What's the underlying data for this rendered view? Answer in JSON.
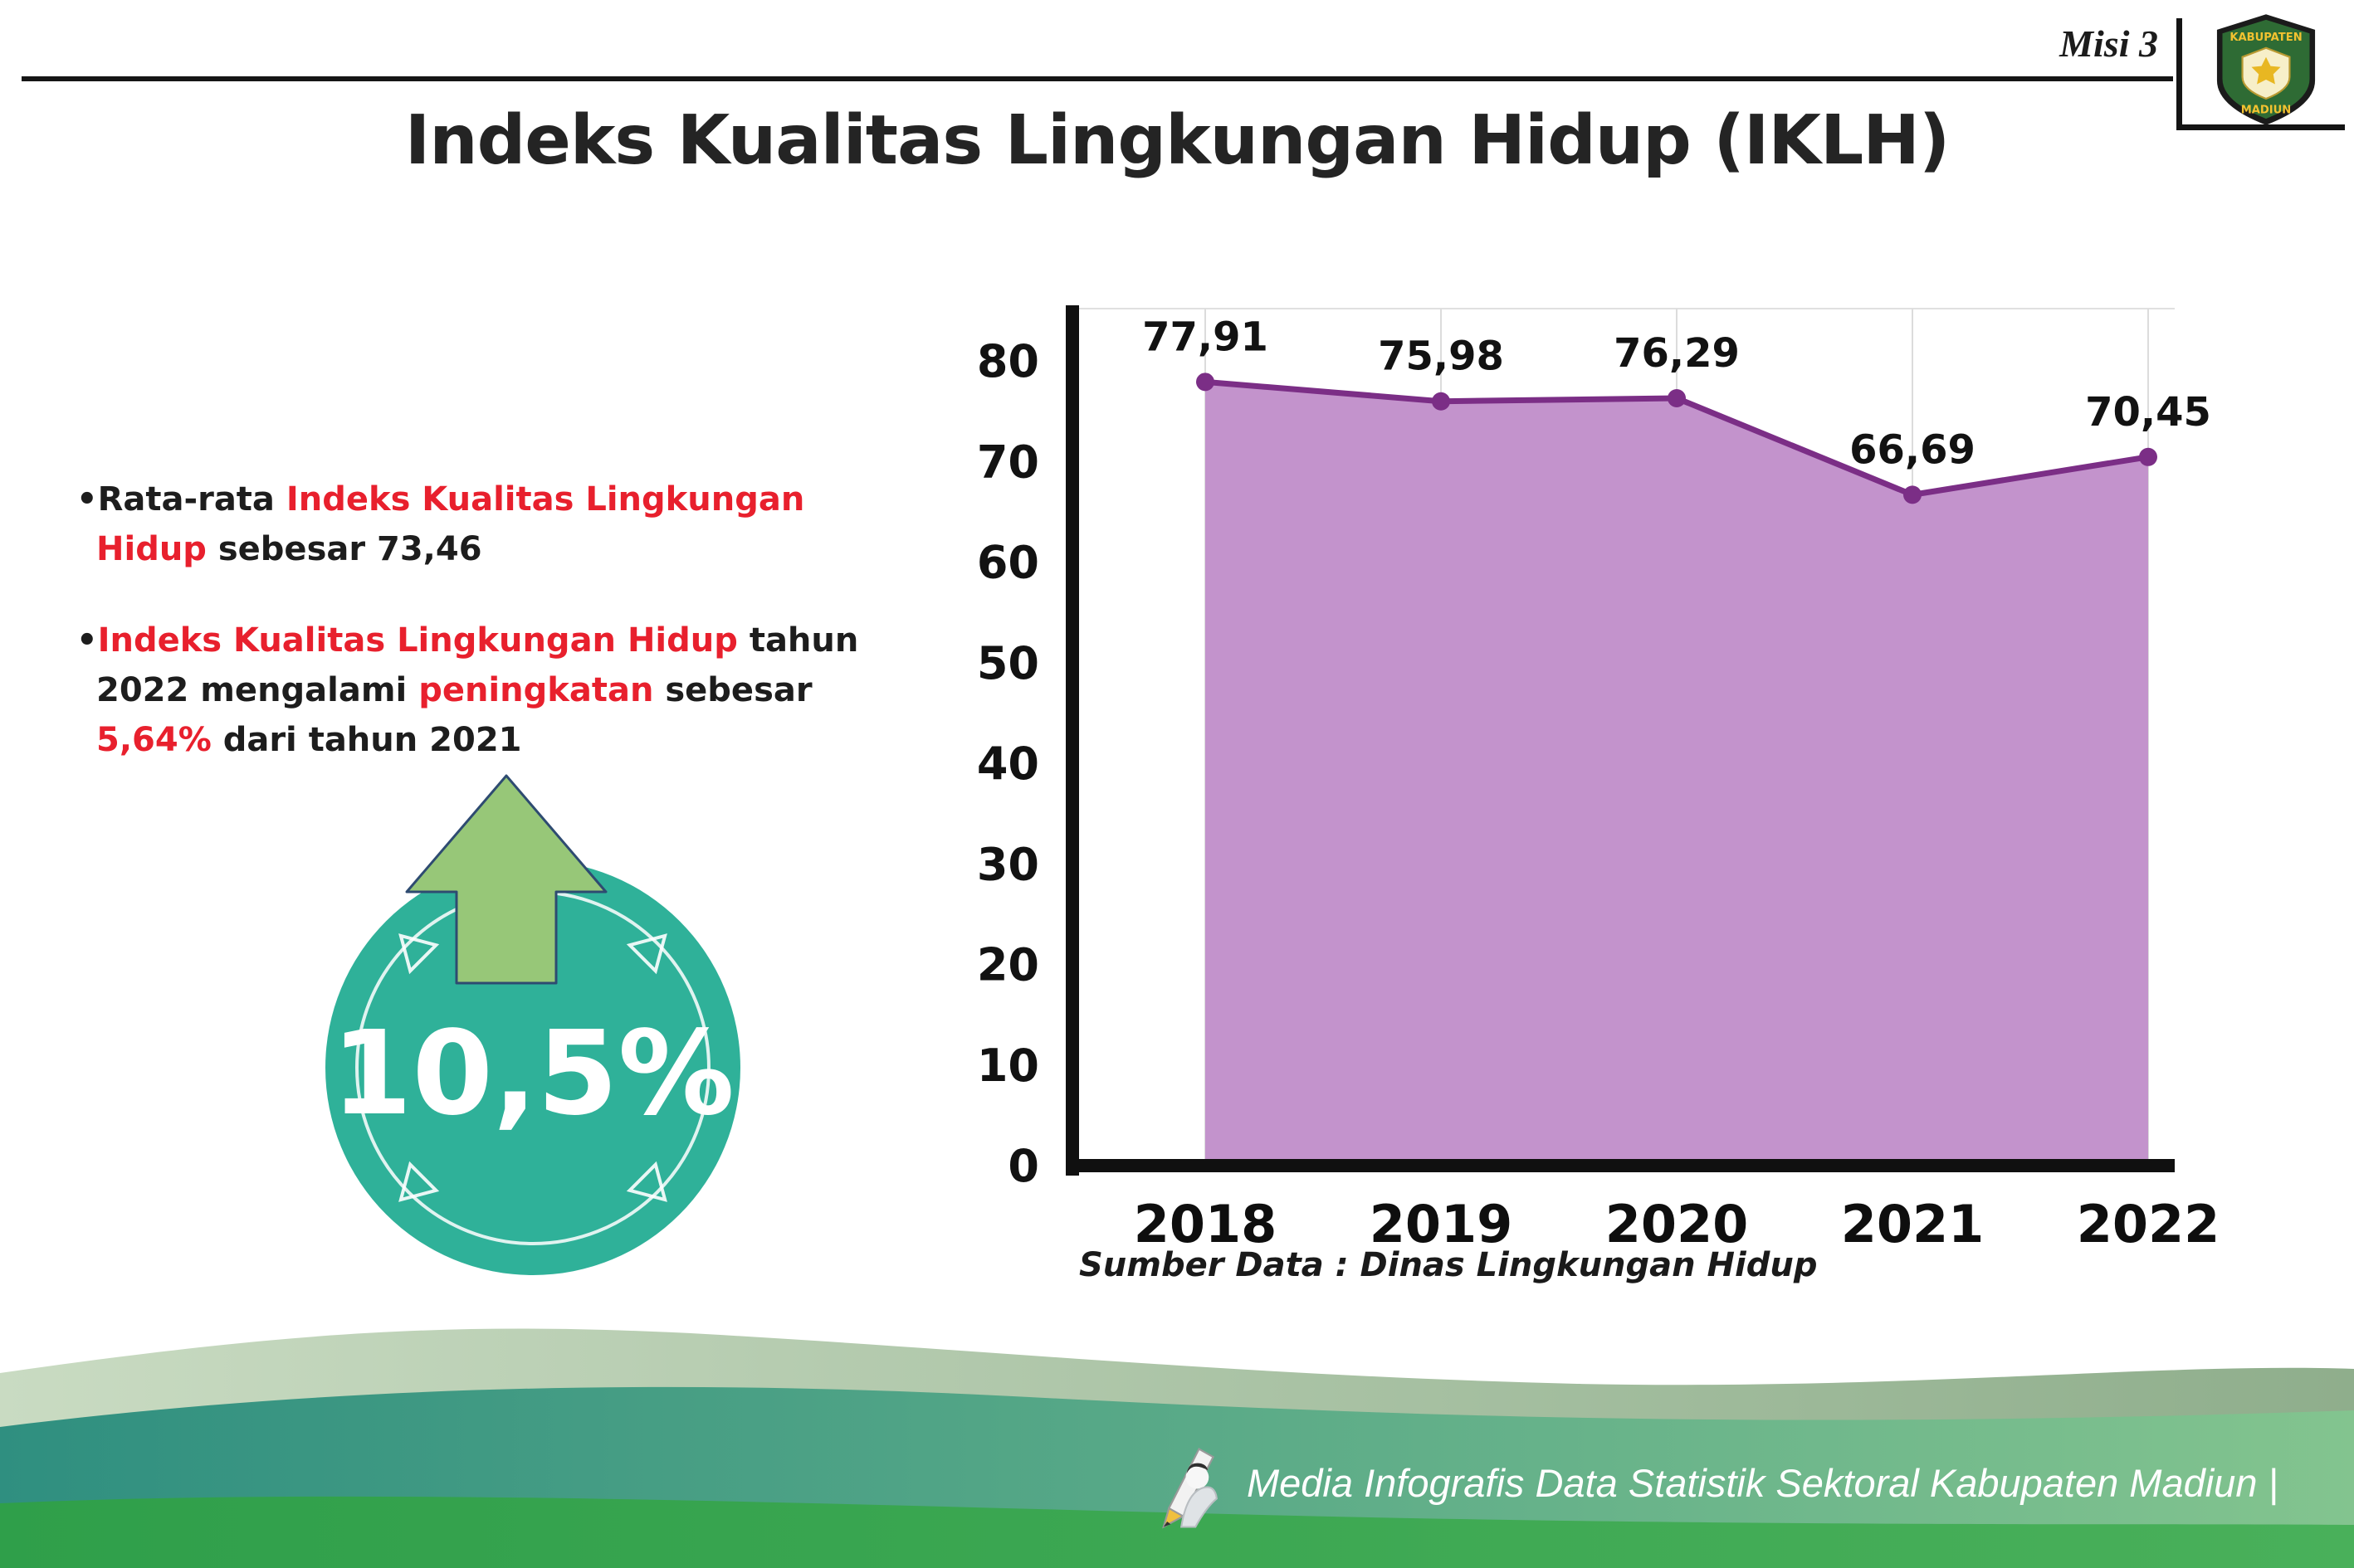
{
  "colors": {
    "accent_red": "#e8202d",
    "text_dark": "#1f1f1f",
    "area_fill": "#c393cc",
    "line_purple": "#7b2e86",
    "badge_teal": "#2fb199",
    "arrow_green": "#97c778",
    "footer_green": "#3aa64f",
    "footer_teal": "#2f8f80",
    "footer_sage": "#c9dbc2"
  },
  "header": {
    "misi_label": "Misi 3",
    "title": "Indeks Kualitas Lingkungan Hidup (IKLH)",
    "logo_top_text": "KABUPATEN",
    "logo_bottom_text": "MADIUN"
  },
  "bullets": {
    "marker": "•",
    "bullet1": {
      "seg1": "Rata-rata ",
      "seg2": "Indeks Kualitas Lingkungan Hidup",
      "seg3": " sebesar 73,46"
    },
    "bullet2": {
      "seg1": "Indeks Kualitas Lingkungan Hidup",
      "seg2": " tahun 2022 mengalami ",
      "seg3": "peningkatan",
      "seg4": " sebesar ",
      "seg5": "5,64%",
      "seg6": " dari tahun 2021"
    }
  },
  "badge": {
    "value": "10,5%"
  },
  "chart_data": {
    "type": "area",
    "title": "Indeks Kualitas Lingkungan Hidup (IKLH)",
    "categories": [
      "2018",
      "2019",
      "2020",
      "2021",
      "2022"
    ],
    "values": [
      77.91,
      75.98,
      76.29,
      66.69,
      70.45
    ],
    "value_labels": [
      "77,91",
      "75,98",
      "76,29",
      "66,69",
      "70,45"
    ],
    "xlabel": "",
    "ylabel": "",
    "ylim": [
      0,
      80
    ],
    "yticks": [
      0,
      10,
      20,
      30,
      40,
      50,
      60,
      70,
      80
    ],
    "grid": "vertical-light",
    "legend": "none",
    "source": "Sumber Data : Dinas Lingkungan Hidup"
  },
  "footer": {
    "credit": "Media Infografis Data Statistik Sektoral Kabupaten Madiun |"
  }
}
